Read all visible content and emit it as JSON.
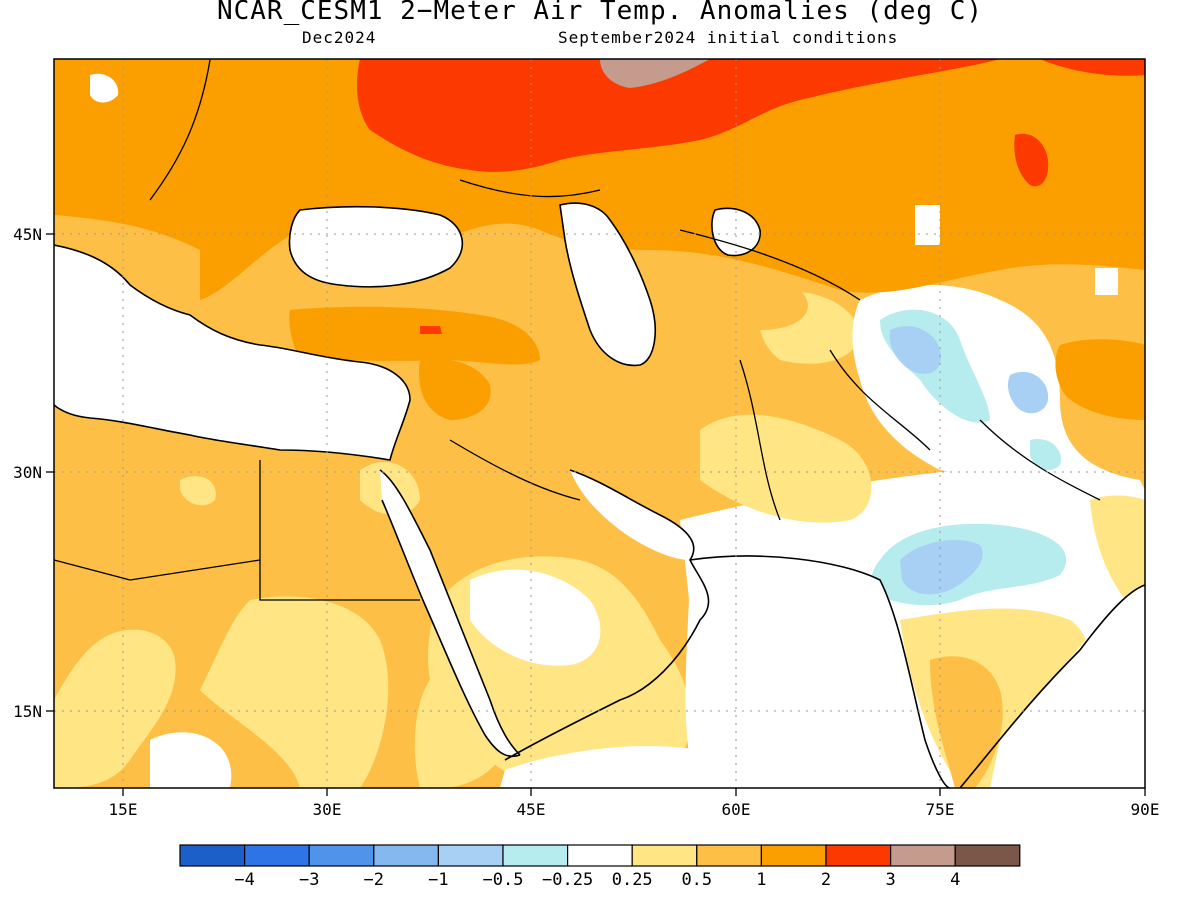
{
  "title": "NCAR_CESM1 2−Meter Air Temp. Anomalies (deg C)",
  "subtitle_left": "Dec2024",
  "subtitle_right": "September2024 initial conditions",
  "map": {
    "lon_range": [
      10,
      90
    ],
    "lat_range": [
      10,
      55
    ],
    "lon_ticks": [
      {
        "value": 15,
        "label": "15E"
      },
      {
        "value": 30,
        "label": "30E"
      },
      {
        "value": 45,
        "label": "45E"
      },
      {
        "value": 60,
        "label": "60E"
      },
      {
        "value": 75,
        "label": "75E"
      },
      {
        "value": 90,
        "label": "90E"
      }
    ],
    "lat_ticks": [
      {
        "value": 15,
        "label": "15N"
      },
      {
        "value": 30,
        "label": "30N"
      },
      {
        "value": 45,
        "label": "45N"
      }
    ],
    "grid": "dotted"
  },
  "colorbar": {
    "colors": [
      "#1d5fc8",
      "#2f74e6",
      "#4f94ea",
      "#84b8ef",
      "#a7d0f4",
      "#b7ecef",
      "#ffffff",
      "#ffe584",
      "#fdbf46",
      "#fb9f00",
      "#fc3a00",
      "#c49b8c",
      "#7a5749"
    ],
    "labels": [
      "−4",
      "−3",
      "−2",
      "−1",
      "−0.5",
      "−0.25",
      "0.25",
      "0.5",
      "1",
      "2",
      "3",
      "4"
    ]
  },
  "anomaly_classes": {
    "lt_-4": "#1d5fc8",
    "-4_-3": "#2f74e6",
    "-3_-2": "#4f94ea",
    "-2_-1": "#84b8ef",
    "-1_-0.5": "#a7d0f4",
    "-0.5_-0.25": "#b7ecef",
    "-0.25_0.25": "#ffffff",
    "0.25_0.5": "#ffe584",
    "0.5_1": "#fdbf46",
    "1_2": "#fb9f00",
    "2_3": "#fc3a00",
    "3_4": "#c49b8c",
    "gt_4": "#7a5749"
  }
}
